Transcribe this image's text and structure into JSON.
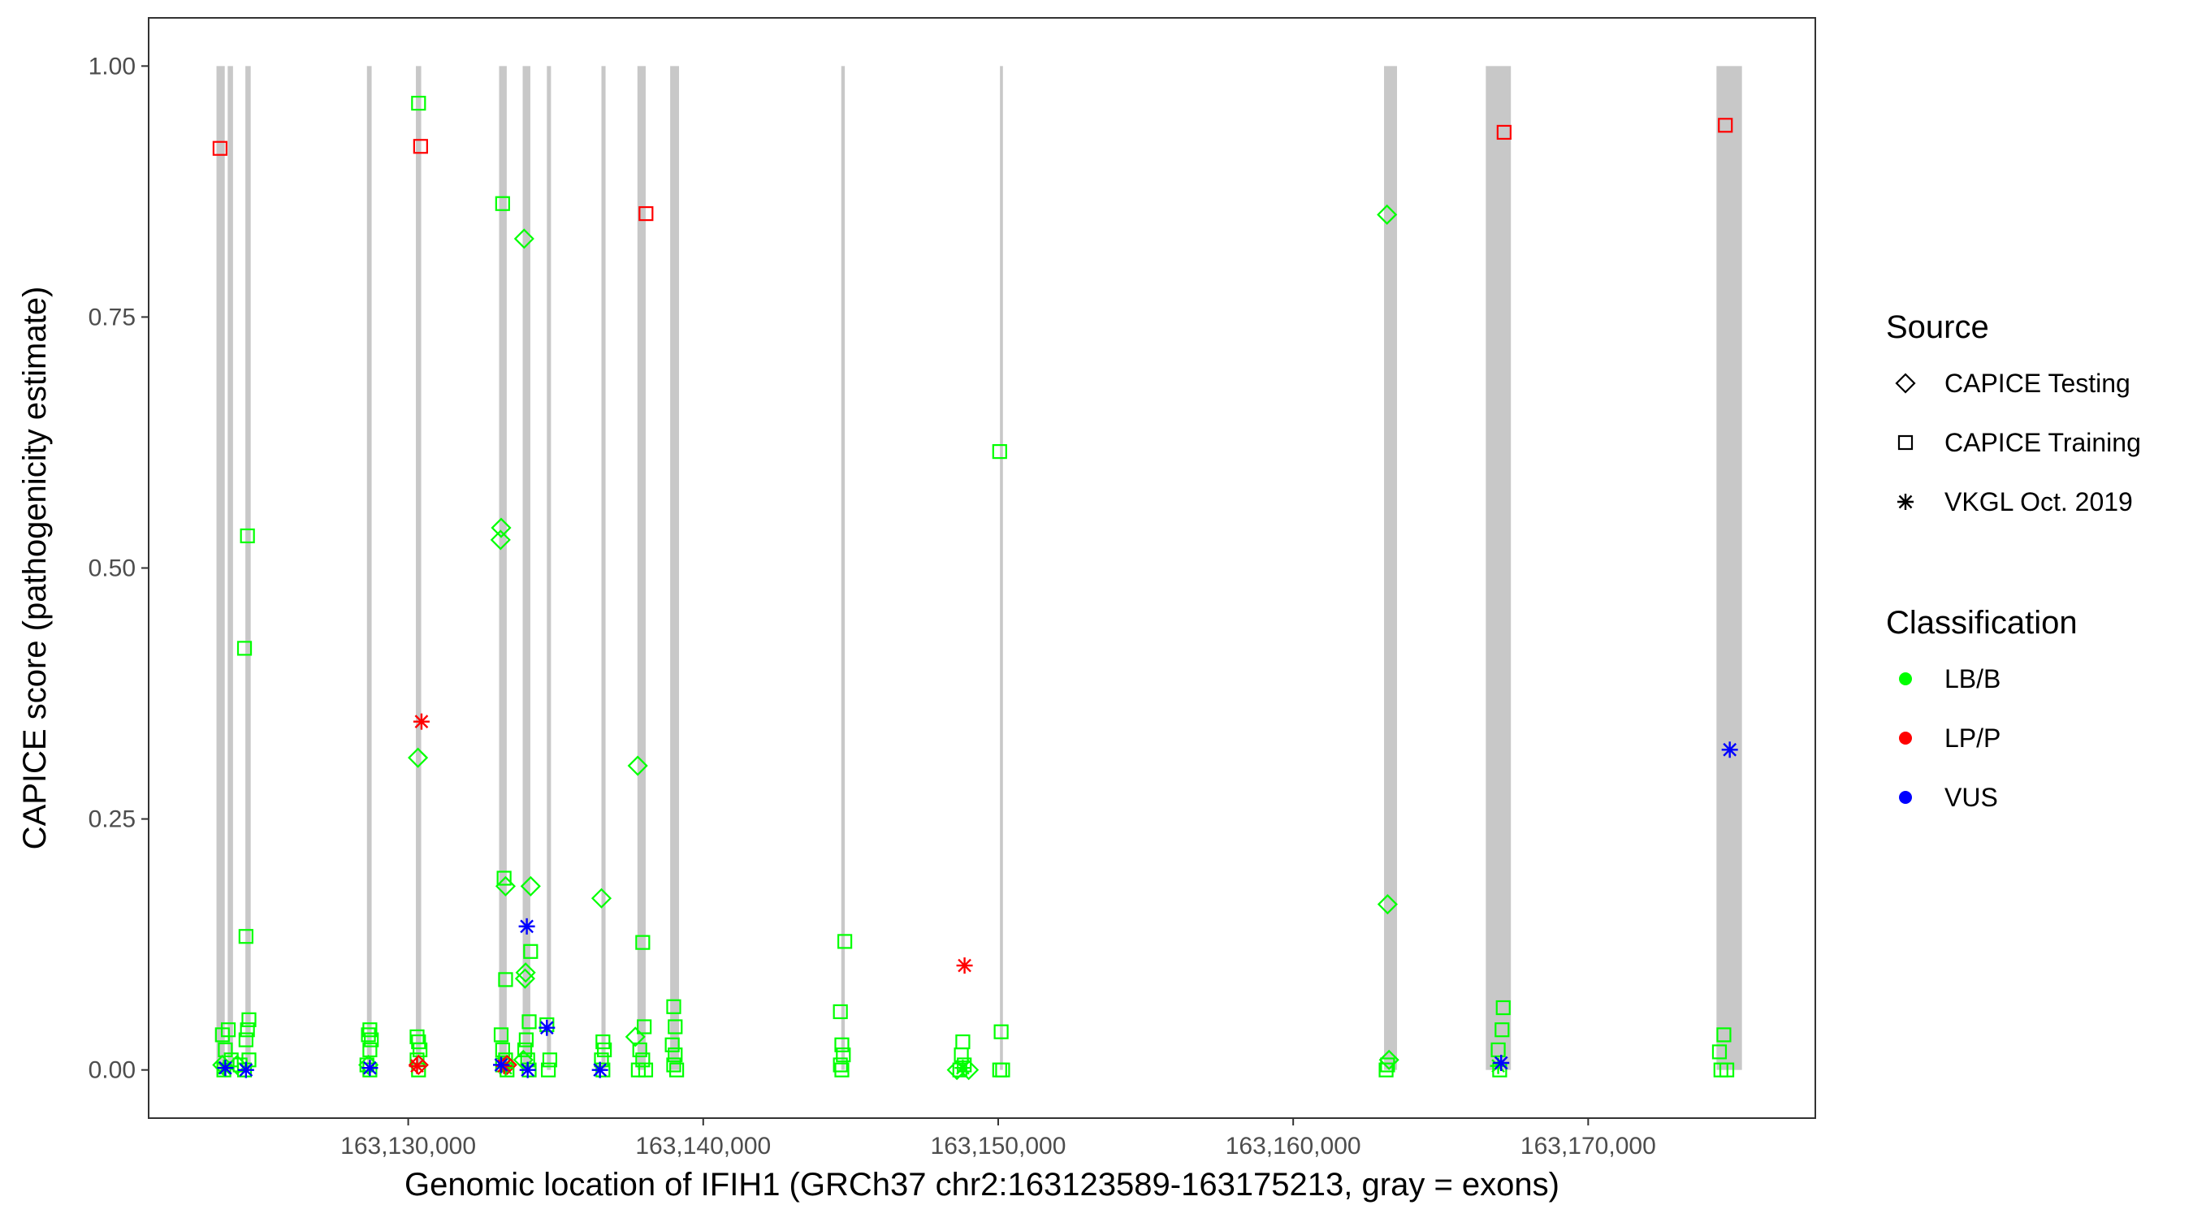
{
  "chart_data": {
    "type": "scatter",
    "title": "",
    "xlabel": "Genomic location of IFIH1 (GRCh37 chr2:163123589-163175213, gray = exons)",
    "ylabel": "CAPICE score (pathogenicity estimate)",
    "xlim": [
      163121200,
      163177700
    ],
    "ylim": [
      -0.048,
      1.048
    ],
    "x_ticks": [
      163130000,
      163140000,
      163150000,
      163160000,
      163170000
    ],
    "x_tick_labels": [
      "163,130,000",
      "163,140,000",
      "163,150,000",
      "163,160,000",
      "163,170,000"
    ],
    "y_ticks": [
      0,
      0.25,
      0.5,
      0.75,
      1.0
    ],
    "y_tick_labels": [
      "0.00",
      "0.25",
      "0.50",
      "0.75",
      "1.00"
    ],
    "grid": false,
    "legend_placement": "right",
    "exons": [
      [
        163123500,
        163123780
      ],
      [
        163123880,
        163124060
      ],
      [
        163124480,
        163124660
      ],
      [
        163128600,
        163128760
      ],
      [
        163130260,
        163130440
      ],
      [
        163133080,
        163133340
      ],
      [
        163133880,
        163134140
      ],
      [
        163134700,
        163134840
      ],
      [
        163136550,
        163136690
      ],
      [
        163137770,
        163138050
      ],
      [
        163138880,
        163139180
      ],
      [
        163144680,
        163144800
      ],
      [
        163150060,
        163150160
      ],
      [
        163163080,
        163163520
      ],
      [
        163166530,
        163167380
      ],
      [
        163174350,
        163175213
      ]
    ],
    "source_legend": {
      "title": "Source",
      "entries": [
        {
          "label": "CAPICE Testing",
          "shape": "diamond"
        },
        {
          "label": "CAPICE Training",
          "shape": "square"
        },
        {
          "label": "VKGL Oct. 2019",
          "shape": "asterisk"
        }
      ]
    },
    "classification_legend": {
      "title": "Classification",
      "entries": [
        {
          "label": "LB/B",
          "color": "#00ff00"
        },
        {
          "label": "LP/P",
          "color": "#ff0000"
        },
        {
          "label": "VUS",
          "color": "#0000ff"
        }
      ]
    },
    "series": [
      {
        "source": "CAPICE Training",
        "classification": "LB/B",
        "points": [
          [
            163123700,
            0.035
          ],
          [
            163123800,
            0.02
          ],
          [
            163123900,
            0.04
          ],
          [
            163124000,
            0.01
          ],
          [
            163123750,
            0.0
          ],
          [
            163124550,
            0.532
          ],
          [
            163124450,
            0.42
          ],
          [
            163124500,
            0.133
          ],
          [
            163124600,
            0.05
          ],
          [
            163124550,
            0.04
          ],
          [
            163124500,
            0.03
          ],
          [
            163124600,
            0.01
          ],
          [
            163124450,
            0.0
          ],
          [
            163124300,
            0.005
          ],
          [
            163128700,
            0.04
          ],
          [
            163128650,
            0.035
          ],
          [
            163128750,
            0.03
          ],
          [
            163128700,
            0.02
          ],
          [
            163128600,
            0.005
          ],
          [
            163128700,
            0.0
          ],
          [
            163130350,
            0.963
          ],
          [
            163130300,
            0.033
          ],
          [
            163130350,
            0.028
          ],
          [
            163130400,
            0.02
          ],
          [
            163130300,
            0.01
          ],
          [
            163130350,
            0.0
          ],
          [
            163133200,
            0.863
          ],
          [
            163133250,
            0.191
          ],
          [
            163133300,
            0.09
          ],
          [
            163133150,
            0.035
          ],
          [
            163133200,
            0.02
          ],
          [
            163133300,
            0.01
          ],
          [
            163133200,
            0.005
          ],
          [
            163133350,
            0.0
          ],
          [
            163134150,
            0.118
          ],
          [
            163134100,
            0.048
          ],
          [
            163134000,
            0.03
          ],
          [
            163133950,
            0.02
          ],
          [
            163134050,
            0.01
          ],
          [
            163134100,
            0.0
          ],
          [
            163134700,
            0.045
          ],
          [
            163134800,
            0.01
          ],
          [
            163134750,
            0.0
          ],
          [
            163136600,
            0.028
          ],
          [
            163136650,
            0.02
          ],
          [
            163136550,
            0.01
          ],
          [
            163136600,
            0.0
          ],
          [
            163137950,
            0.127
          ],
          [
            163138000,
            0.043
          ],
          [
            163137850,
            0.02
          ],
          [
            163137950,
            0.01
          ],
          [
            163137800,
            0.0
          ],
          [
            163138050,
            0.0
          ],
          [
            163139000,
            0.063
          ],
          [
            163139050,
            0.043
          ],
          [
            163138950,
            0.025
          ],
          [
            163139050,
            0.015
          ],
          [
            163139000,
            0.005
          ],
          [
            163139100,
            0.0
          ],
          [
            163144650,
            0.058
          ],
          [
            163144700,
            0.025
          ],
          [
            163144750,
            0.015
          ],
          [
            163144650,
            0.005
          ],
          [
            163144700,
            0.0
          ],
          [
            163144800,
            0.128
          ],
          [
            163148800,
            0.028
          ],
          [
            163148750,
            0.015
          ],
          [
            163148850,
            0.005
          ],
          [
            163148700,
            0.0
          ],
          [
            163150050,
            0.616
          ],
          [
            163150100,
            0.038
          ],
          [
            163150050,
            0.0
          ],
          [
            163150150,
            0.0
          ],
          [
            163163200,
            0.005
          ],
          [
            163163150,
            0.0
          ],
          [
            163167120,
            0.062
          ],
          [
            163167080,
            0.04
          ],
          [
            163166950,
            0.02
          ],
          [
            163167000,
            0.0
          ],
          [
            163174600,
            0.035
          ],
          [
            163174450,
            0.018
          ],
          [
            163174500,
            0.0
          ],
          [
            163174700,
            0.0
          ]
        ]
      },
      {
        "source": "CAPICE Training",
        "classification": "LP/P",
        "points": [
          [
            163123620,
            0.918
          ],
          [
            163130420,
            0.92
          ],
          [
            163138060,
            0.853
          ],
          [
            163167150,
            0.934
          ],
          [
            163174650,
            0.941
          ]
        ]
      },
      {
        "source": "CAPICE Testing",
        "classification": "LB/B",
        "points": [
          [
            163123700,
            0.005
          ],
          [
            163124200,
            0.005
          ],
          [
            163128650,
            0.005
          ],
          [
            163130330,
            0.311
          ],
          [
            163133150,
            0.54
          ],
          [
            163133130,
            0.528
          ],
          [
            163133300,
            0.183
          ],
          [
            163133930,
            0.828
          ],
          [
            163134150,
            0.183
          ],
          [
            163133980,
            0.097
          ],
          [
            163133960,
            0.091
          ],
          [
            163133900,
            0.01
          ],
          [
            163136550,
            0.171
          ],
          [
            163137780,
            0.303
          ],
          [
            163137700,
            0.033
          ],
          [
            163163180,
            0.852
          ],
          [
            163163200,
            0.165
          ],
          [
            163163250,
            0.01
          ],
          [
            163148600,
            0.0
          ],
          [
            163149000,
            0.0
          ]
        ]
      },
      {
        "source": "CAPICE Testing",
        "classification": "LP/P",
        "points": [
          [
            163130350,
            0.005
          ],
          [
            163133350,
            0.005
          ]
        ]
      },
      {
        "source": "VKGL Oct. 2019",
        "classification": "LB/B",
        "points": [
          [
            163123750,
            0.002
          ],
          [
            163133300,
            0.002
          ],
          [
            163148800,
            0.002
          ],
          [
            163166950,
            0.004
          ]
        ]
      },
      {
        "source": "VKGL Oct. 2019",
        "classification": "LP/P",
        "points": [
          [
            163130450,
            0.347
          ],
          [
            163148860,
            0.104
          ],
          [
            163133250,
            0.004
          ],
          [
            163130300,
            0.004
          ]
        ]
      },
      {
        "source": "VKGL Oct. 2019",
        "classification": "VUS",
        "points": [
          [
            163123800,
            0.002
          ],
          [
            163124500,
            0.0
          ],
          [
            163128700,
            0.002
          ],
          [
            163133150,
            0.005
          ],
          [
            163134020,
            0.143
          ],
          [
            163134700,
            0.042
          ],
          [
            163134050,
            0.0
          ],
          [
            163136500,
            0.0
          ],
          [
            163167050,
            0.007
          ],
          [
            163174800,
            0.319
          ]
        ]
      }
    ]
  }
}
